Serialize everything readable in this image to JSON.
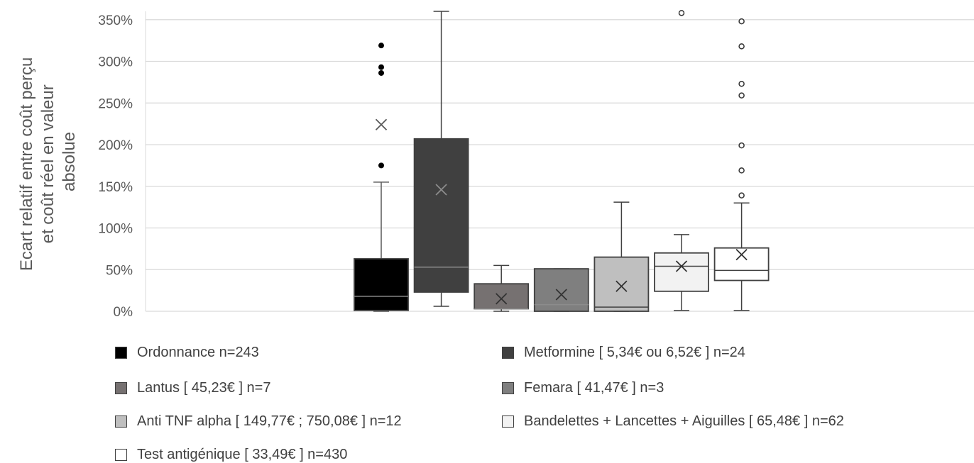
{
  "chart_data": {
    "type": "box",
    "ylabel": [
      "Ecart relatif entre coût perçu",
      "et coût réel en valeur",
      "absolue"
    ],
    "ylim": [
      0,
      360
    ],
    "y_ticks": [
      "0%",
      "50%",
      "100%",
      "150%",
      "200%",
      "250%",
      "300%",
      "350%"
    ],
    "y_tick_values": [
      0,
      50,
      100,
      150,
      200,
      250,
      300,
      350
    ],
    "grid": "horizontal",
    "legend_position": "bottom",
    "series": [
      {
        "name": "Ordonnance   n=243",
        "color": "#000000",
        "marker_style": "filled",
        "min": 0,
        "q1": 1,
        "median": 18,
        "q3": 63,
        "max": 155,
        "mean": 224,
        "outliers": [
          175,
          286,
          293,
          319
        ]
      },
      {
        "name": "Metformine [ 5,34€ ou 6,52€ ]  n=24",
        "color": "#404040",
        "marker_style": "filled",
        "min": 6,
        "q1": 23,
        "median": 53,
        "q3": 207,
        "max": 360,
        "mean": 146,
        "outliers": []
      },
      {
        "name": "Lantus [ 45,23€ ]   n=7",
        "color": "#767171",
        "marker_style": "filled",
        "min": 0,
        "q1": 3,
        "median": 3,
        "q3": 33,
        "max": 55,
        "mean": 15,
        "outliers": []
      },
      {
        "name": "Femara [ 41,47€ ] n=3",
        "color": "#7f7f7f",
        "marker_style": "filled",
        "min": 0,
        "q1": 0,
        "median": 8,
        "q3": 51,
        "max": 51,
        "mean": 20,
        "outliers": []
      },
      {
        "name": "Anti TNF alpha [ 149,77€ ; 750,08€ ]  n=12",
        "color": "#bfbfbf",
        "marker_style": "open",
        "min": 0,
        "q1": 0,
        "median": 5,
        "q3": 65,
        "max": 131,
        "mean": 30,
        "outliers": []
      },
      {
        "name": "Bandelettes + Lancettes + Aiguilles [ 65,48€ ]  n=62",
        "color": "#f2f2f2",
        "marker_style": "open",
        "min": 1,
        "q1": 24,
        "median": 54,
        "q3": 70,
        "max": 92,
        "mean": 54,
        "outliers": [
          358
        ]
      },
      {
        "name": "Test antigénique [ 33,49€ ] n=430",
        "color": "#ffffff",
        "marker_style": "open",
        "min": 1,
        "q1": 37,
        "median": 49,
        "q3": 76,
        "max": 130,
        "mean": 68,
        "outliers": [
          139,
          169,
          199,
          259,
          273,
          318,
          348
        ]
      }
    ]
  },
  "colors": {
    "grid": "#d9d9d9",
    "axis_text": "#595959",
    "stroke": "#404040"
  }
}
